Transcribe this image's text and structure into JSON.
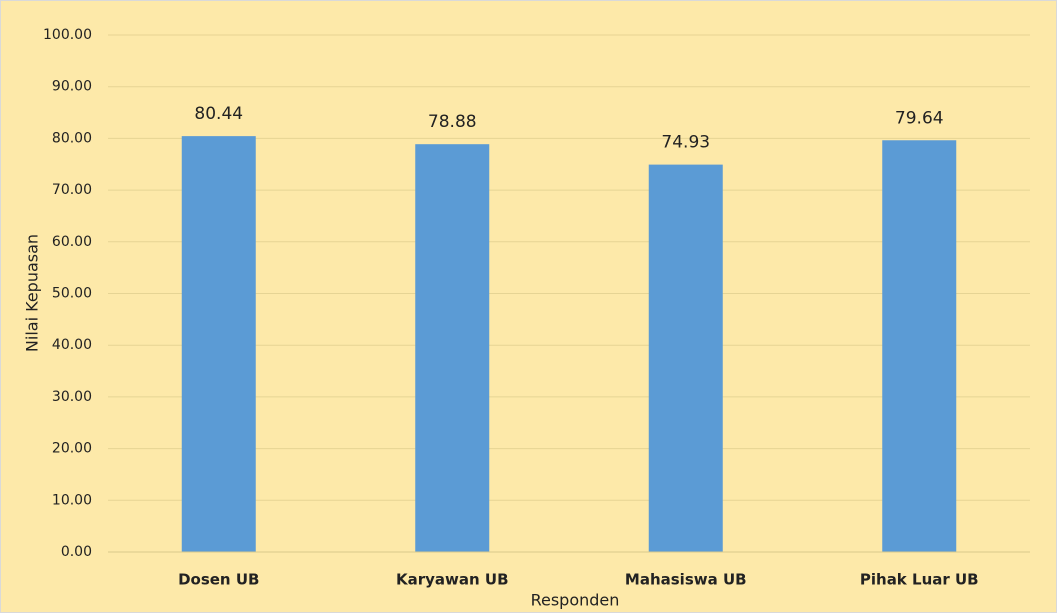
{
  "chart_data": {
    "type": "bar",
    "categories": [
      "Dosen UB",
      "Karyawan UB",
      "Mahasiswa UB",
      "Pihak Luar UB"
    ],
    "values": [
      80.44,
      78.88,
      74.93,
      79.64
    ],
    "color": "#5b9bd5",
    "xlabel": "Responden",
    "ylabel": "Nilai Kepuasan",
    "ylim": [
      0,
      100
    ],
    "yticks": [
      {
        "value": 0,
        "label": "0.00"
      },
      {
        "value": 10,
        "label": "10.00"
      },
      {
        "value": 20,
        "label": "20.00"
      },
      {
        "value": 30,
        "label": "30.00"
      },
      {
        "value": 40,
        "label": "40.00"
      },
      {
        "value": 50,
        "label": "50.00"
      },
      {
        "value": 60,
        "label": "60.00"
      },
      {
        "value": 70,
        "label": "70.00"
      },
      {
        "value": 80,
        "label": "80.00"
      },
      {
        "value": 90,
        "label": "90.00"
      },
      {
        "value": 100,
        "label": "100.00"
      }
    ],
    "grid": true
  }
}
